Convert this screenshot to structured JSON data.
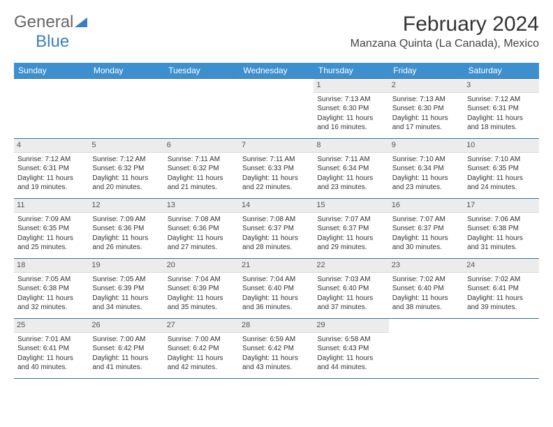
{
  "brand": {
    "part1": "General",
    "part2": "Blue"
  },
  "title": "February 2024",
  "location": "Manzana Quinta (La Canada), Mexico",
  "colors": {
    "header_bg": "#3e8fce",
    "border": "#2f6fa3",
    "daynum_bg": "#ececec",
    "brand_blue": "#3a7ebf"
  },
  "weekdays": [
    "Sunday",
    "Monday",
    "Tuesday",
    "Wednesday",
    "Thursday",
    "Friday",
    "Saturday"
  ],
  "weeks": [
    [
      {
        "empty": true
      },
      {
        "empty": true
      },
      {
        "empty": true
      },
      {
        "empty": true
      },
      {
        "n": "1",
        "sr": "Sunrise: 7:13 AM",
        "ss": "Sunset: 6:30 PM",
        "dl": "Daylight: 11 hours and 16 minutes."
      },
      {
        "n": "2",
        "sr": "Sunrise: 7:13 AM",
        "ss": "Sunset: 6:30 PM",
        "dl": "Daylight: 11 hours and 17 minutes."
      },
      {
        "n": "3",
        "sr": "Sunrise: 7:12 AM",
        "ss": "Sunset: 6:31 PM",
        "dl": "Daylight: 11 hours and 18 minutes."
      }
    ],
    [
      {
        "n": "4",
        "sr": "Sunrise: 7:12 AM",
        "ss": "Sunset: 6:31 PM",
        "dl": "Daylight: 11 hours and 19 minutes."
      },
      {
        "n": "5",
        "sr": "Sunrise: 7:12 AM",
        "ss": "Sunset: 6:32 PM",
        "dl": "Daylight: 11 hours and 20 minutes."
      },
      {
        "n": "6",
        "sr": "Sunrise: 7:11 AM",
        "ss": "Sunset: 6:32 PM",
        "dl": "Daylight: 11 hours and 21 minutes."
      },
      {
        "n": "7",
        "sr": "Sunrise: 7:11 AM",
        "ss": "Sunset: 6:33 PM",
        "dl": "Daylight: 11 hours and 22 minutes."
      },
      {
        "n": "8",
        "sr": "Sunrise: 7:11 AM",
        "ss": "Sunset: 6:34 PM",
        "dl": "Daylight: 11 hours and 23 minutes."
      },
      {
        "n": "9",
        "sr": "Sunrise: 7:10 AM",
        "ss": "Sunset: 6:34 PM",
        "dl": "Daylight: 11 hours and 23 minutes."
      },
      {
        "n": "10",
        "sr": "Sunrise: 7:10 AM",
        "ss": "Sunset: 6:35 PM",
        "dl": "Daylight: 11 hours and 24 minutes."
      }
    ],
    [
      {
        "n": "11",
        "sr": "Sunrise: 7:09 AM",
        "ss": "Sunset: 6:35 PM",
        "dl": "Daylight: 11 hours and 25 minutes."
      },
      {
        "n": "12",
        "sr": "Sunrise: 7:09 AM",
        "ss": "Sunset: 6:36 PM",
        "dl": "Daylight: 11 hours and 26 minutes."
      },
      {
        "n": "13",
        "sr": "Sunrise: 7:08 AM",
        "ss": "Sunset: 6:36 PM",
        "dl": "Daylight: 11 hours and 27 minutes."
      },
      {
        "n": "14",
        "sr": "Sunrise: 7:08 AM",
        "ss": "Sunset: 6:37 PM",
        "dl": "Daylight: 11 hours and 28 minutes."
      },
      {
        "n": "15",
        "sr": "Sunrise: 7:07 AM",
        "ss": "Sunset: 6:37 PM",
        "dl": "Daylight: 11 hours and 29 minutes."
      },
      {
        "n": "16",
        "sr": "Sunrise: 7:07 AM",
        "ss": "Sunset: 6:37 PM",
        "dl": "Daylight: 11 hours and 30 minutes."
      },
      {
        "n": "17",
        "sr": "Sunrise: 7:06 AM",
        "ss": "Sunset: 6:38 PM",
        "dl": "Daylight: 11 hours and 31 minutes."
      }
    ],
    [
      {
        "n": "18",
        "sr": "Sunrise: 7:05 AM",
        "ss": "Sunset: 6:38 PM",
        "dl": "Daylight: 11 hours and 32 minutes."
      },
      {
        "n": "19",
        "sr": "Sunrise: 7:05 AM",
        "ss": "Sunset: 6:39 PM",
        "dl": "Daylight: 11 hours and 34 minutes."
      },
      {
        "n": "20",
        "sr": "Sunrise: 7:04 AM",
        "ss": "Sunset: 6:39 PM",
        "dl": "Daylight: 11 hours and 35 minutes."
      },
      {
        "n": "21",
        "sr": "Sunrise: 7:04 AM",
        "ss": "Sunset: 6:40 PM",
        "dl": "Daylight: 11 hours and 36 minutes."
      },
      {
        "n": "22",
        "sr": "Sunrise: 7:03 AM",
        "ss": "Sunset: 6:40 PM",
        "dl": "Daylight: 11 hours and 37 minutes."
      },
      {
        "n": "23",
        "sr": "Sunrise: 7:02 AM",
        "ss": "Sunset: 6:40 PM",
        "dl": "Daylight: 11 hours and 38 minutes."
      },
      {
        "n": "24",
        "sr": "Sunrise: 7:02 AM",
        "ss": "Sunset: 6:41 PM",
        "dl": "Daylight: 11 hours and 39 minutes."
      }
    ],
    [
      {
        "n": "25",
        "sr": "Sunrise: 7:01 AM",
        "ss": "Sunset: 6:41 PM",
        "dl": "Daylight: 11 hours and 40 minutes."
      },
      {
        "n": "26",
        "sr": "Sunrise: 7:00 AM",
        "ss": "Sunset: 6:42 PM",
        "dl": "Daylight: 11 hours and 41 minutes."
      },
      {
        "n": "27",
        "sr": "Sunrise: 7:00 AM",
        "ss": "Sunset: 6:42 PM",
        "dl": "Daylight: 11 hours and 42 minutes."
      },
      {
        "n": "28",
        "sr": "Sunrise: 6:59 AM",
        "ss": "Sunset: 6:42 PM",
        "dl": "Daylight: 11 hours and 43 minutes."
      },
      {
        "n": "29",
        "sr": "Sunrise: 6:58 AM",
        "ss": "Sunset: 6:43 PM",
        "dl": "Daylight: 11 hours and 44 minutes."
      },
      {
        "empty": true
      },
      {
        "empty": true
      }
    ]
  ]
}
